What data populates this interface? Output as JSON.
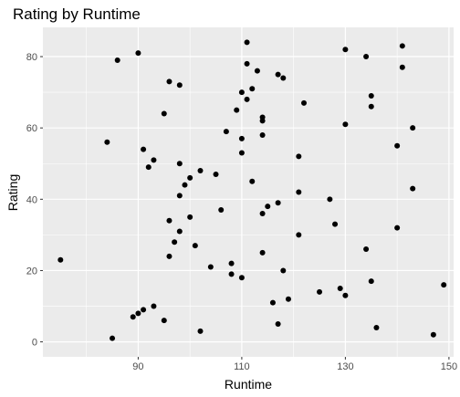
{
  "chart_data": {
    "type": "scatter",
    "title": "Rating by Runtime",
    "xlabel": "Runtime",
    "ylabel": "Rating",
    "xlim": [
      71.6,
      150.9
    ],
    "ylim": [
      -4.2,
      88.2
    ],
    "x_ticks": [
      90,
      110,
      130,
      150
    ],
    "y_ticks": [
      0,
      20,
      40,
      60,
      80
    ],
    "x_minor": [
      80,
      100,
      120,
      140
    ],
    "y_minor": [
      10,
      30,
      50,
      70
    ],
    "grid": true,
    "legend": "none",
    "colors": {
      "panel": "#ebebeb",
      "grid": "#ffffff",
      "point": "#000000",
      "tick": "#333333"
    },
    "points": [
      [
        75,
        23
      ],
      [
        84,
        56
      ],
      [
        85,
        1
      ],
      [
        86,
        79
      ],
      [
        89,
        7
      ],
      [
        90,
        8
      ],
      [
        90,
        81
      ],
      [
        91,
        54
      ],
      [
        91,
        9
      ],
      [
        92,
        49
      ],
      [
        93,
        51
      ],
      [
        93,
        10
      ],
      [
        95,
        6
      ],
      [
        95,
        64
      ],
      [
        96,
        73
      ],
      [
        96,
        34
      ],
      [
        96,
        24
      ],
      [
        97,
        28
      ],
      [
        98,
        72
      ],
      [
        98,
        50
      ],
      [
        98,
        41
      ],
      [
        98,
        31
      ],
      [
        99,
        44
      ],
      [
        100,
        46
      ],
      [
        100,
        35
      ],
      [
        101,
        27
      ],
      [
        102,
        48
      ],
      [
        102,
        3
      ],
      [
        104,
        21
      ],
      [
        105,
        47
      ],
      [
        106,
        37
      ],
      [
        107,
        59
      ],
      [
        108,
        22
      ],
      [
        108,
        19
      ],
      [
        109,
        65
      ],
      [
        110,
        70
      ],
      [
        110,
        57
      ],
      [
        110,
        53
      ],
      [
        110,
        18
      ],
      [
        111,
        84
      ],
      [
        111,
        78
      ],
      [
        111,
        68
      ],
      [
        112,
        71
      ],
      [
        112,
        45
      ],
      [
        113,
        76
      ],
      [
        114,
        63
      ],
      [
        114,
        62
      ],
      [
        114,
        58
      ],
      [
        114,
        36
      ],
      [
        114,
        25
      ],
      [
        115,
        38
      ],
      [
        116,
        11
      ],
      [
        117,
        75
      ],
      [
        117,
        39
      ],
      [
        117,
        5
      ],
      [
        118,
        74
      ],
      [
        118,
        20
      ],
      [
        119,
        12
      ],
      [
        121,
        52
      ],
      [
        121,
        42
      ],
      [
        121,
        30
      ],
      [
        122,
        67
      ],
      [
        125,
        14
      ],
      [
        127,
        40
      ],
      [
        128,
        33
      ],
      [
        129,
        15
      ],
      [
        130,
        82
      ],
      [
        130,
        61
      ],
      [
        130,
        13
      ],
      [
        134,
        80
      ],
      [
        134,
        26
      ],
      [
        135,
        69
      ],
      [
        135,
        66
      ],
      [
        135,
        17
      ],
      [
        136,
        4
      ],
      [
        140,
        55
      ],
      [
        140,
        32
      ],
      [
        141,
        83
      ],
      [
        141,
        77
      ],
      [
        143,
        60
      ],
      [
        143,
        43
      ],
      [
        147,
        2
      ],
      [
        149,
        16
      ]
    ]
  }
}
